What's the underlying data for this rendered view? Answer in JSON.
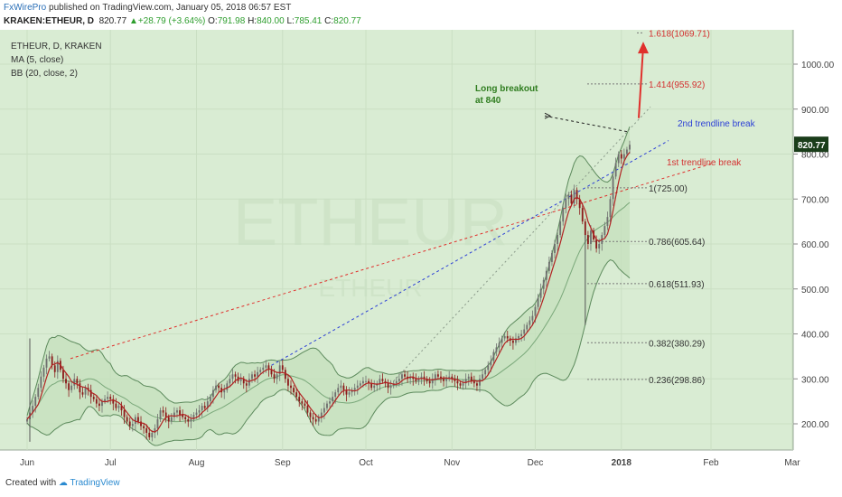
{
  "header": {
    "author": "FxWirePro",
    "published": "published on TradingView.com, January 05, 2018 06:57 EST",
    "symbol": "KRAKEN:ETHEUR, D",
    "last": "820.77",
    "change_arrow": "▲",
    "change": "+28.79 (+3.64%)",
    "ohlc_labels": {
      "o": "O:",
      "h": "H:",
      "l": "L:",
      "c": "C:"
    },
    "ohlc": {
      "o": "791.98",
      "h": "840.00",
      "l": "785.41",
      "c": "820.77"
    }
  },
  "legend": [
    "ETHEUR, D, KRAKEN",
    "MA (5, close)",
    "BB (20, close, 2)"
  ],
  "watermark": {
    "main": "ETHEUR",
    "sub": "ETHEUR"
  },
  "footer": {
    "created": "Created with",
    "brand": "TradingView"
  },
  "colors": {
    "bg": "#d9ecd3",
    "up": "#6f6f6f",
    "down": "#8b1a1a",
    "ma": "#b22222",
    "bb": "#5c8a5c",
    "red_trend": "#e0302c",
    "blue_trend": "#2b3fd6",
    "fib": "#888888",
    "price_tag": "#1a3d1a"
  },
  "chart_data": {
    "type": "candlestick",
    "symbol": "KRAKEN:ETHEUR",
    "timeframe": "D",
    "yaxis_ticks": [
      "200.00",
      "300.00",
      "400.00",
      "500.00",
      "600.00",
      "700.00",
      "800.00",
      "900.00",
      "1000.00"
    ],
    "xaxis_ticks": [
      "Jun",
      "Jul",
      "Aug",
      "Sep",
      "Oct",
      "Nov",
      "Dec",
      "2018",
      "Feb",
      "Mar"
    ],
    "ylim": [
      150,
      1100
    ],
    "last_price": "820.77",
    "fib_levels": [
      {
        "label": "1.618(1069.71)",
        "value": 1069.71
      },
      {
        "label": "1.414(955.92)",
        "value": 955.92
      },
      {
        "label": "1(725.00)",
        "value": 725.0
      },
      {
        "label": "0.786(605.64)",
        "value": 605.64
      },
      {
        "label": "0.618(511.93)",
        "value": 511.93
      },
      {
        "label": "0.382(380.29)",
        "value": 380.29
      },
      {
        "label": "0.236(298.86)",
        "value": 298.86
      }
    ],
    "annotations": {
      "breakout": [
        "Long breakout",
        "at 840"
      ],
      "trend1": "1st trendline break",
      "trend2": "2nd trendline break"
    },
    "closes": [
      {
        "month": "Jun",
        "values": [
          210,
          225,
          240,
          260,
          280,
          305,
          325,
          345,
          350,
          330,
          315,
          340,
          320,
          300,
          290,
          275,
          285,
          300,
          290,
          270,
          265,
          280,
          275,
          260,
          255,
          245,
          240,
          250,
          255,
          260
        ]
      },
      {
        "month": "Jul",
        "values": [
          255,
          245,
          235,
          240,
          230,
          215,
          205,
          195,
          200,
          215,
          205,
          195,
          190,
          180,
          170,
          180,
          190,
          210,
          230,
          225,
          215,
          205,
          215,
          225,
          230,
          220,
          215,
          210,
          205,
          210,
          220
        ]
      },
      {
        "month": "Aug",
        "values": [
          225,
          230,
          240,
          235,
          250,
          260,
          275,
          285,
          280,
          270,
          275,
          290,
          300,
          310,
          305,
          295,
          300,
          290,
          285,
          300,
          310,
          305,
          315,
          320,
          325,
          330,
          320,
          310,
          300,
          310,
          330
        ]
      },
      {
        "month": "Sep",
        "values": [
          320,
          300,
          285,
          280,
          270,
          260,
          250,
          245,
          240,
          225,
          215,
          210,
          205,
          215,
          225,
          235,
          245,
          250,
          260,
          270,
          280,
          285,
          275,
          265,
          270,
          275,
          280,
          285,
          290,
          295
        ]
      },
      {
        "month": "Oct",
        "values": [
          295,
          290,
          280,
          285,
          290,
          300,
          295,
          290,
          280,
          285,
          290,
          295,
          300,
          310,
          305,
          300,
          305,
          300,
          295,
          300,
          305,
          300,
          295,
          290,
          300,
          310,
          305,
          300,
          295,
          300,
          305
        ]
      },
      {
        "month": "Nov",
        "values": [
          300,
          295,
          290,
          285,
          290,
          300,
          305,
          295,
          290,
          285,
          300,
          310,
          320,
          330,
          340,
          360,
          370,
          380,
          390,
          395,
          390,
          385,
          380,
          390,
          395,
          400,
          410,
          420,
          430,
          440
        ]
      },
      {
        "month": "Dec",
        "values": [
          460,
          480,
          500,
          520,
          540,
          560,
          580,
          600,
          620,
          650,
          680,
          700,
          710,
          690,
          720,
          700,
          680,
          650,
          620,
          600,
          630,
          610,
          590,
          600,
          620,
          640,
          660,
          700,
          750,
          780,
          800
        ]
      },
      {
        "month": "Jan",
        "values": [
          790,
          800,
          810,
          820.77
        ]
      }
    ]
  }
}
